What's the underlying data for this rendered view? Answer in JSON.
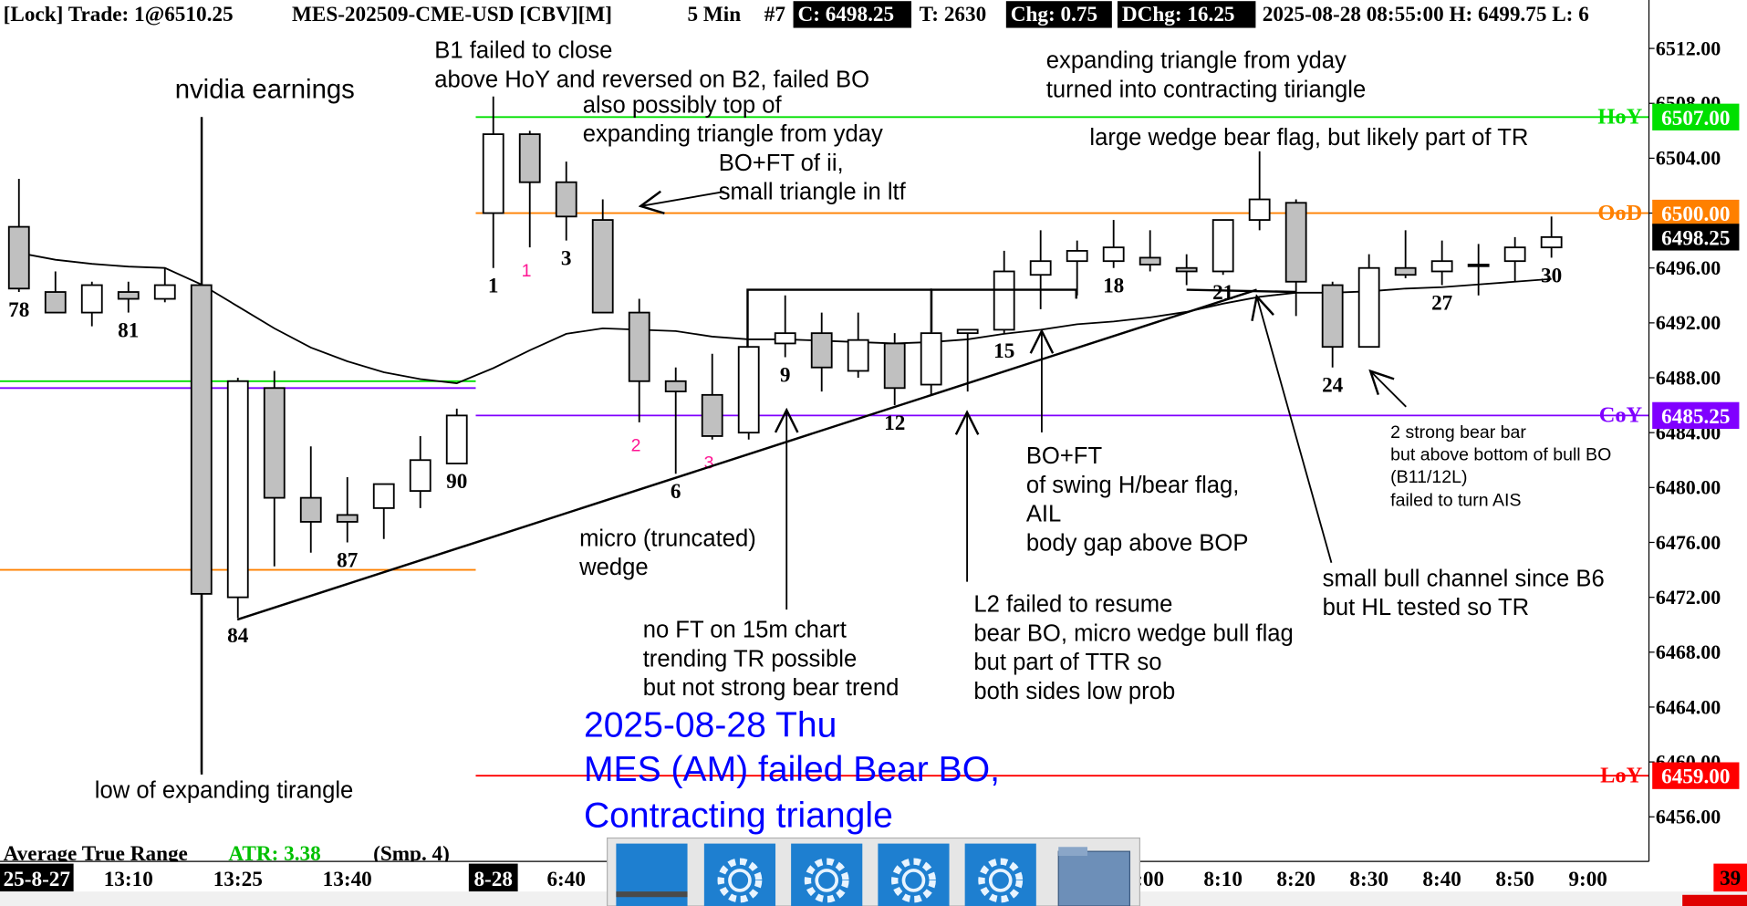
{
  "header": {
    "lock": "[Lock] Trade: 1@6510.25",
    "symbol": "MES-202509-CME-USD [CBV][M]",
    "interval": "5 Min",
    "count": "#7",
    "close": "C: 6498.25",
    "ticks": "T: 2630",
    "change": "Chg: 0.75",
    "day_change": "DChg: 16.25",
    "stamp": "2025-08-28 08:55:00 H: 6499.75 L: 6"
  },
  "annotations": {
    "earnings": "nvidia earnings",
    "b1": [
      "B1 failed to close",
      "above HoY and reversed on B2, failed BO"
    ],
    "top": [
      "also possibly top of",
      "expanding triangle from yday"
    ],
    "ii": [
      "BO+FT of ii,",
      "small triangle in ltf"
    ],
    "expanding": [
      "expanding triangle from yday",
      "turned into contracting tiriangle"
    ],
    "wedge_flag": "large wedge bear flag, but likely part of TR",
    "micro": [
      "micro (truncated)",
      "wedge"
    ],
    "no_ft": [
      "no FT on 15m chart",
      "trending TR possible",
      "but not strong bear trend"
    ],
    "boft": [
      "BO+FT",
      "of swing H/bear flag,",
      "AIL",
      "body gap above BOP"
    ],
    "l2": [
      "L2 failed to resume",
      "bear BO, micro wedge bull flag",
      "but part of TTR so",
      "both sides low prob"
    ],
    "channel": [
      "small bull channel since B6",
      "but HL tested so TR"
    ],
    "bear_bars": [
      "2 strong bear bar",
      "but above bottom of bull BO",
      "(B11/12L)",
      "failed to turn AIS"
    ],
    "low": "low of expanding tirangle"
  },
  "title_overlay": [
    "2025-08-28 Thu",
    "MES (AM) failed Bear BO,",
    "Contracting triangle"
  ],
  "indicator": {
    "name": "Average True Range",
    "value": "ATR: 3.38",
    "params": "(Smp. 4)"
  },
  "ui": {
    "countdown": 39
  },
  "chart_data": {
    "type": "candlestick",
    "categories": [
      "25-8-27",
      null,
      null,
      "13:10",
      null,
      null,
      "13:25",
      null,
      null,
      "13:40",
      null,
      null,
      null,
      "8-28",
      null,
      "6:40",
      null,
      null,
      null,
      null,
      null,
      null,
      null,
      null,
      null,
      null,
      null,
      null,
      null,
      null,
      null,
      ":00",
      null,
      "8:10",
      null,
      "8:20",
      null,
      "8:30",
      null,
      "8:40",
      null,
      "8:50",
      null,
      "9:00"
    ],
    "open": [
      6499,
      6494.25,
      6492.75,
      6494.25,
      6493.75,
      6494.75,
      6472,
      6487.25,
      6479.25,
      6478,
      6478.5,
      6479.75,
      6481.75,
      6500,
      6505.75,
      6502.25,
      6499.5,
      6492.75,
      6487.75,
      6486.75,
      6484,
      6490.5,
      6491.25,
      6488.5,
      6490.5,
      6487.5,
      6491.25,
      6491.5,
      6495.5,
      6496.5,
      6496.5,
      6496.75,
      6496,
      6495.75,
      6499.5,
      6500.75,
      6494.75,
      6490.25,
      6496,
      6495.75,
      6496.25,
      6496.5,
      6497.5,
      null
    ],
    "high": [
      6502.5,
      6495.75,
      6495,
      6495,
      6496,
      6494.75,
      6488,
      6488.5,
      6483,
      6480.75,
      6480.25,
      6483.75,
      6485.75,
      6508.5,
      6506,
      6503.75,
      6501,
      6493.75,
      6488.75,
      6489.75,
      6490.25,
      6494,
      6492.75,
      6492.75,
      6491.25,
      6494.5,
      6491.5,
      6497.25,
      6498.75,
      6498,
      6499.5,
      6498.75,
      6497,
      6499.5,
      6504.5,
      6501,
      6495,
      6497,
      6498.75,
      6498,
      6497.75,
      6498.25,
      6499.75,
      null
    ],
    "low": [
      6494.25,
      6492.75,
      6491.75,
      6492.75,
      6493.5,
      6459.25,
      6470.5,
      6474.25,
      6475.25,
      6476,
      6476.25,
      6478.5,
      6481.75,
      6496,
      6497.5,
      6498,
      6492.75,
      6484.75,
      6481,
      6483.5,
      6483.5,
      6489.5,
      6487,
      6488,
      6486,
      6486.75,
      6487,
      6491.25,
      6493,
      6494,
      6496,
      6495.75,
      6494.75,
      6495.5,
      6498.75,
      6492.5,
      6488.75,
      6490.25,
      6495.25,
      6494.75,
      6494,
      6495,
      6496.75,
      null
    ],
    "close": [
      6494.5,
      6492.75,
      6494.75,
      6493.75,
      6494.75,
      6472.25,
      6487.75,
      6479.25,
      6477.5,
      6477.5,
      6480.25,
      6482,
      6485.25,
      6505.75,
      6502.25,
      6499.75,
      6492.75,
      6487.75,
      6487,
      6483.75,
      6490.25,
      6491.25,
      6488.75,
      6490.75,
      6487.25,
      6491.25,
      6491.5,
      6495.75,
      6496.5,
      6497.25,
      6497.5,
      6496.25,
      6495.75,
      6499.5,
      6501,
      6495,
      6490.25,
      6496,
      6495.5,
      6496.5,
      6496.25,
      6497.5,
      6498.25,
      null
    ],
    "up_color": "#ffffff",
    "down_color": "#c0c0c0",
    "ema": {
      "color": "#000000",
      "values": [
        6497.1,
        6496.6,
        6496.3,
        6496.1,
        6496.0,
        6494.8,
        6493.2,
        6491.6,
        6490.2,
        6489.2,
        6488.4,
        6487.9,
        6487.6,
        6488.7,
        6490.0,
        6491.2,
        6491.6,
        6491.5,
        6491.4,
        6491.0,
        6490.8,
        6490.8,
        6490.7,
        6490.6,
        6490.5,
        6490.6,
        6490.8,
        6491.2,
        6491.5,
        6491.9,
        6492.1,
        6492.4,
        6492.8,
        6493.4,
        6493.9,
        6494.2,
        6494.2,
        6494.3,
        6494.5,
        6494.6,
        6494.8,
        6495.0,
        6495.2,
        null
      ]
    },
    "bar_labels": [
      78,
      null,
      null,
      81,
      null,
      null,
      84,
      null,
      null,
      87,
      null,
      null,
      90,
      1,
      null,
      3,
      null,
      null,
      6,
      null,
      null,
      9,
      null,
      null,
      12,
      null,
      null,
      15,
      null,
      null,
      18,
      null,
      null,
      21,
      null,
      null,
      24,
      null,
      null,
      27,
      null,
      null,
      30,
      null
    ],
    "count_labels": {
      "color": "#ff1493",
      "values": [
        null,
        null,
        null,
        null,
        null,
        null,
        null,
        null,
        null,
        null,
        null,
        null,
        null,
        null,
        1,
        null,
        null,
        2,
        null,
        3,
        null,
        null,
        null,
        null,
        null,
        null,
        null,
        null,
        null,
        null,
        null,
        null,
        null,
        null,
        null,
        null,
        null,
        null,
        null,
        null,
        null,
        null,
        null,
        null
      ]
    },
    "levels": [
      {
        "name": "HoY",
        "value": 6507,
        "label": "6507.00",
        "color": "#00e000"
      },
      {
        "name": "OoD",
        "value": 6500,
        "label": "6500.00",
        "color": "#ff8000"
      },
      {
        "name": "CoY",
        "value": 6485.25,
        "label": "6485.25",
        "color": "#8000ff"
      },
      {
        "name": "LoY",
        "value": 6459,
        "label": "6459.00",
        "color": "#ff0000"
      }
    ],
    "prior_levels": [
      {
        "value": 6487.75,
        "color": "#00e000"
      },
      {
        "value": 6487.25,
        "color": "#8000ff"
      },
      {
        "value": 6474,
        "color": "#ff8000"
      }
    ],
    "last_price": 6498.25,
    "ylim": [
      6452.75,
      6513.5
    ],
    "yticks": [
      {
        "value": 6512,
        "label": "6512.00"
      },
      {
        "value": 6508,
        "label": "6508.00"
      },
      {
        "value": 6504,
        "label": "6504.00"
      },
      {
        "value": 6500,
        "label": "6500.00"
      },
      {
        "value": 6496,
        "label": "6496.00"
      },
      {
        "value": 6492,
        "label": "6492.00"
      },
      {
        "value": 6488,
        "label": "6488.00"
      },
      {
        "value": 6484,
        "label": "6484.00"
      },
      {
        "value": 6480,
        "label": "6480.00"
      },
      {
        "value": 6476,
        "label": "6476.00"
      },
      {
        "value": 6472,
        "label": "6472.00"
      },
      {
        "value": 6468,
        "label": "6468.00"
      },
      {
        "value": 6464,
        "label": "6464.00"
      },
      {
        "value": 6460,
        "label": "6460.00"
      },
      {
        "value": 6456,
        "label": "6456.00"
      }
    ],
    "grid": false
  }
}
